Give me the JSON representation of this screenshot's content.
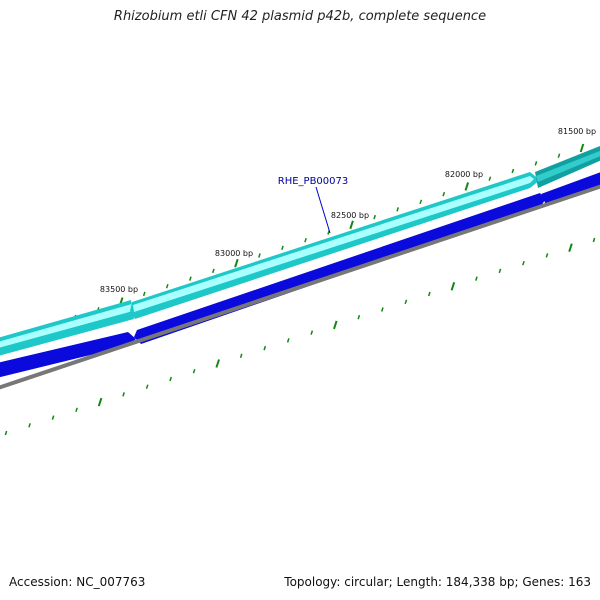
{
  "title": "Rhizobium etli CFN 42 plasmid p42b, complete sequence",
  "accession": "Accession: NC_007763",
  "summary": "Topology: circular; Length: 184,338 bp; Genes: 163",
  "gene_label": "RHE_PB00073",
  "ruler_labels": [
    "81500 bp",
    "82000 bp",
    "82500 bp",
    "83000 bp",
    "83500 bp"
  ],
  "colors": {
    "forward_gene": "#1ec8c8",
    "forward_gene_highlight": "#aaffff",
    "forward_gene_selected": "#10a0a0",
    "reverse_gene": "#0a0adc",
    "backbone": "#777777",
    "tick": "#118811",
    "label": "#000099"
  }
}
